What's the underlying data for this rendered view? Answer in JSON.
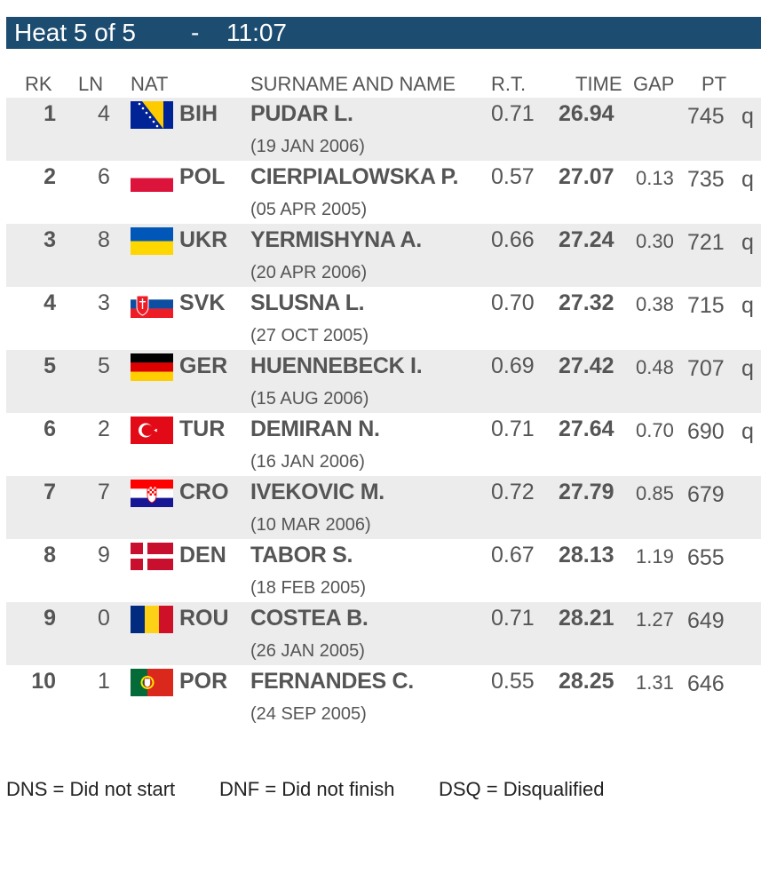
{
  "heat": {
    "label": "Heat 5 of 5",
    "separator": "-",
    "clock": "11:07"
  },
  "columns": {
    "rk": "RK",
    "ln": "LN",
    "nat": "NAT",
    "name": "SURNAME AND NAME",
    "rt": "R.T.",
    "time": "TIME",
    "gap": "GAP",
    "pt": "PT"
  },
  "results": [
    {
      "rk": "1",
      "ln": "4",
      "nat": "BIH",
      "flag": "bih-flag-icon",
      "name": "PUDAR L.",
      "dob": "(19 JAN 2006)",
      "rt": "0.71",
      "time": "26.94",
      "gap": "",
      "pt": "745",
      "q": "q"
    },
    {
      "rk": "2",
      "ln": "6",
      "nat": "POL",
      "flag": "pol-flag-icon",
      "name": "CIERPIALOWSKA P.",
      "dob": "(05 APR 2005)",
      "rt": "0.57",
      "time": "27.07",
      "gap": "0.13",
      "pt": "735",
      "q": "q"
    },
    {
      "rk": "3",
      "ln": "8",
      "nat": "UKR",
      "flag": "ukr-flag-icon",
      "name": "YERMISHYNA A.",
      "dob": "(20 APR 2006)",
      "rt": "0.66",
      "time": "27.24",
      "gap": "0.30",
      "pt": "721",
      "q": "q"
    },
    {
      "rk": "4",
      "ln": "3",
      "nat": "SVK",
      "flag": "svk-flag-icon",
      "name": "SLUSNA L.",
      "dob": "(27 OCT 2005)",
      "rt": "0.70",
      "time": "27.32",
      "gap": "0.38",
      "pt": "715",
      "q": "q"
    },
    {
      "rk": "5",
      "ln": "5",
      "nat": "GER",
      "flag": "ger-flag-icon",
      "name": "HUENNEBECK I.",
      "dob": "(15 AUG 2006)",
      "rt": "0.69",
      "time": "27.42",
      "gap": "0.48",
      "pt": "707",
      "q": "q"
    },
    {
      "rk": "6",
      "ln": "2",
      "nat": "TUR",
      "flag": "tur-flag-icon",
      "name": "DEMIRAN N.",
      "dob": "(16 JAN 2006)",
      "rt": "0.71",
      "time": "27.64",
      "gap": "0.70",
      "pt": "690",
      "q": "q"
    },
    {
      "rk": "7",
      "ln": "7",
      "nat": "CRO",
      "flag": "cro-flag-icon",
      "name": "IVEKOVIC M.",
      "dob": "(10 MAR 2006)",
      "rt": "0.72",
      "time": "27.79",
      "gap": "0.85",
      "pt": "679",
      "q": ""
    },
    {
      "rk": "8",
      "ln": "9",
      "nat": "DEN",
      "flag": "den-flag-icon",
      "name": "TABOR S.",
      "dob": "(18 FEB 2005)",
      "rt": "0.67",
      "time": "28.13",
      "gap": "1.19",
      "pt": "655",
      "q": ""
    },
    {
      "rk": "9",
      "ln": "0",
      "nat": "ROU",
      "flag": "rou-flag-icon",
      "name": "COSTEA B.",
      "dob": "(26 JAN 2005)",
      "rt": "0.71",
      "time": "28.21",
      "gap": "1.27",
      "pt": "649",
      "q": ""
    },
    {
      "rk": "10",
      "ln": "1",
      "nat": "POR",
      "flag": "por-flag-icon",
      "name": "FERNANDES C.",
      "dob": "(24 SEP 2005)",
      "rt": "0.55",
      "time": "28.25",
      "gap": "1.31",
      "pt": "646",
      "q": ""
    }
  ],
  "legend": {
    "dns": "DNS = Did not start",
    "dnf": "DNF = Did not finish",
    "dsq": "DSQ = Disqualified"
  },
  "colors": {
    "banner": "#1c4c70",
    "row_shade": "#ececec",
    "text": "#555555"
  }
}
